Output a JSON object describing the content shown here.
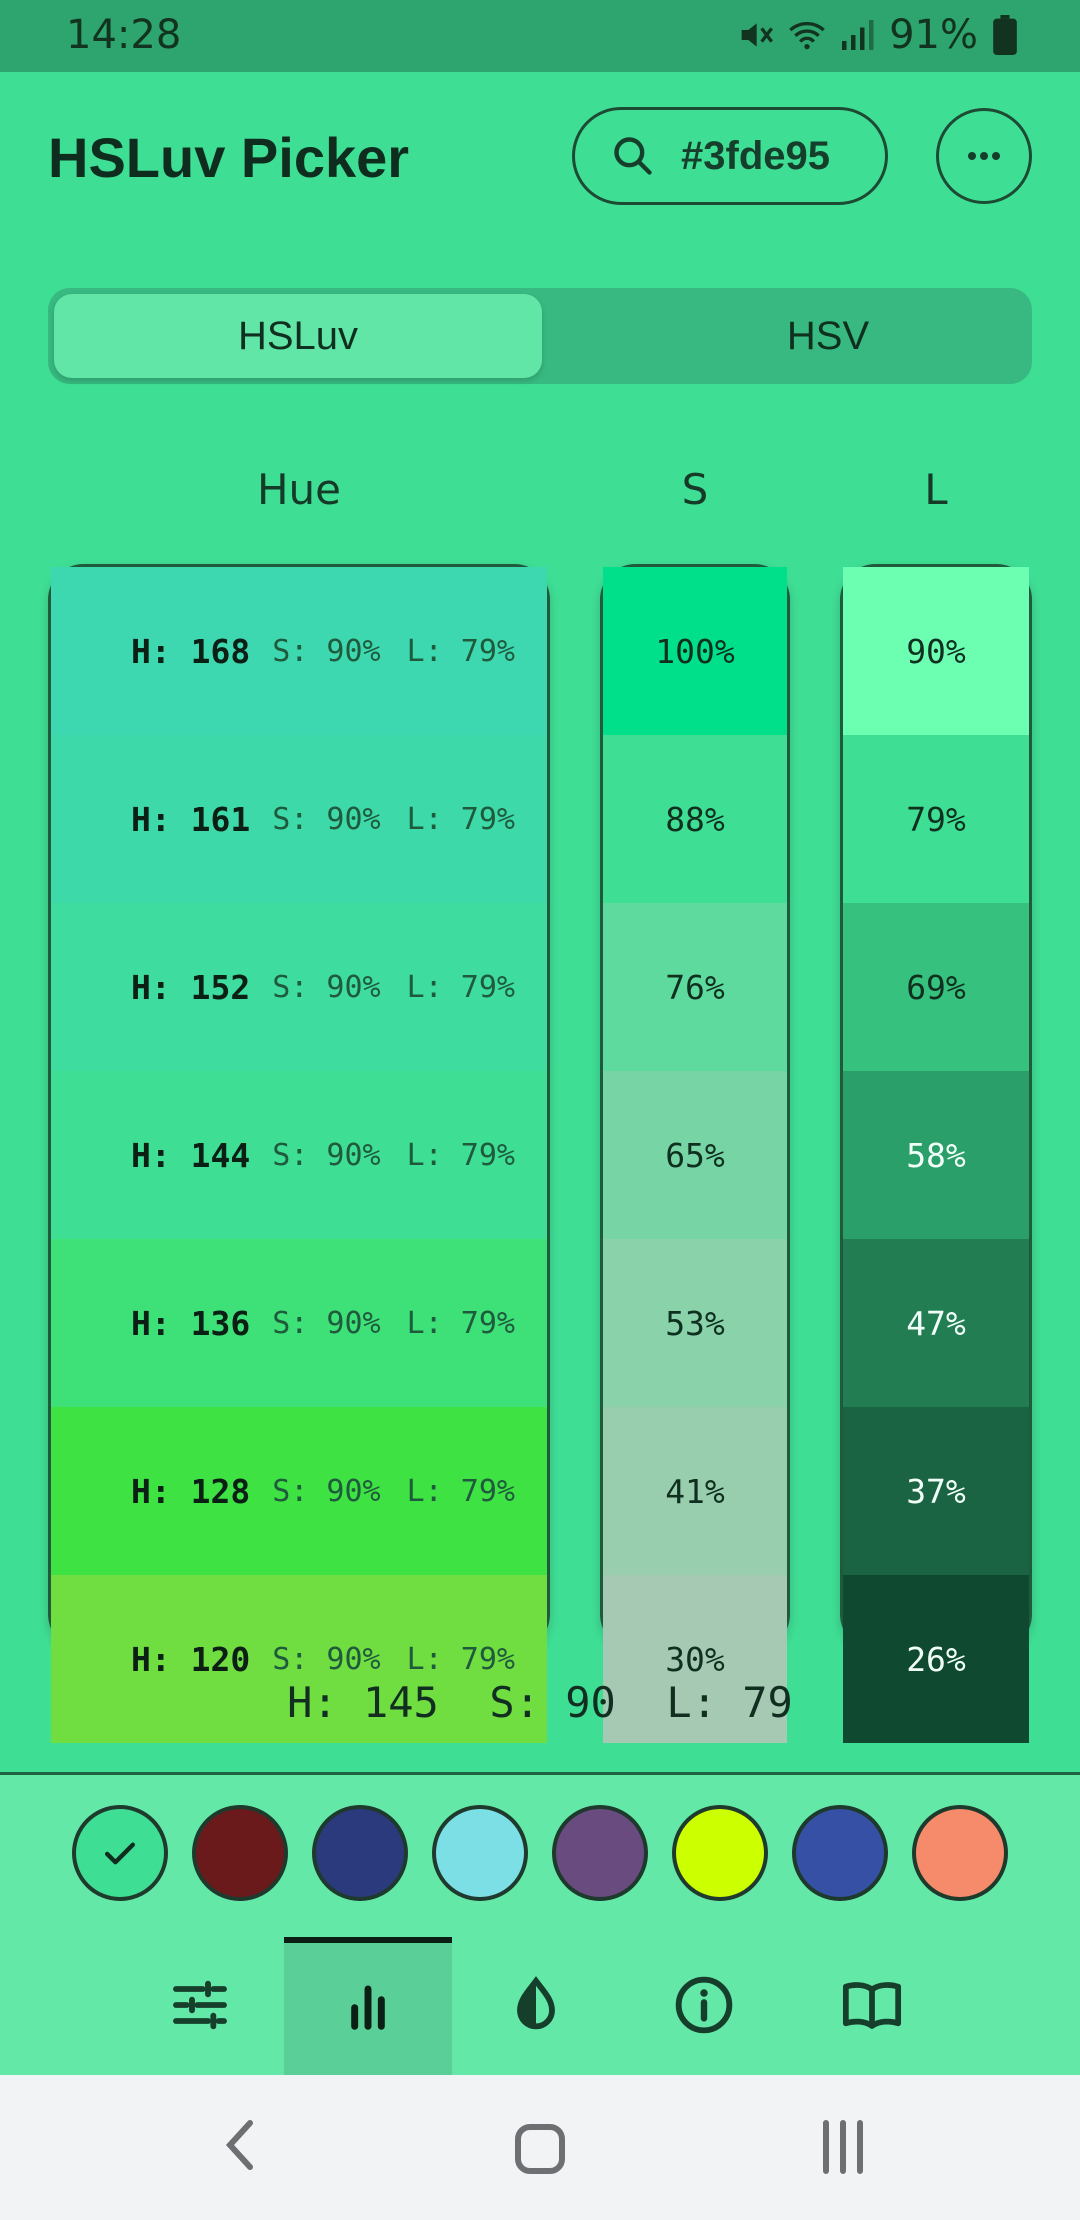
{
  "status_bar": {
    "time": "14:28",
    "battery": "91%"
  },
  "header": {
    "title": "HSLuv Picker",
    "hex_value": "#3fde95"
  },
  "mode_tabs": [
    {
      "label": "HSLuv",
      "active": true
    },
    {
      "label": "HSV",
      "active": false
    }
  ],
  "columns": {
    "hue": "Hue",
    "saturation": "S",
    "lightness": "L"
  },
  "hue_rows": [
    {
      "h": "H: 168",
      "s": "S: 90%",
      "l": "L: 79%",
      "color": "#3ed8b0"
    },
    {
      "h": "H: 161",
      "s": "S: 90%",
      "l": "L: 79%",
      "color": "#3dd9a8"
    },
    {
      "h": "H: 152",
      "s": "S: 90%",
      "l": "L: 79%",
      "color": "#3edc9f"
    },
    {
      "h": "H: 144",
      "s": "S: 90%",
      "l": "L: 79%",
      "color": "#3ede95"
    },
    {
      "h": "H: 136",
      "s": "S: 90%",
      "l": "L: 79%",
      "color": "#3ee078"
    },
    {
      "h": "H: 128",
      "s": "S: 90%",
      "l": "L: 79%",
      "color": "#3ee243"
    },
    {
      "h": "H: 120",
      "s": "S: 90%",
      "l": "L: 79%",
      "color": "#70de40"
    }
  ],
  "saturation_rows": [
    {
      "label": "100%",
      "color": "#00e08a"
    },
    {
      "label": "88%",
      "color": "#3fde95"
    },
    {
      "label": "76%",
      "color": "#5fda9e"
    },
    {
      "label": "65%",
      "color": "#77d5a5"
    },
    {
      "label": "53%",
      "color": "#89d2aa"
    },
    {
      "label": "41%",
      "color": "#98cdae"
    },
    {
      "label": "30%",
      "color": "#a5c9b3"
    }
  ],
  "lightness_rows": [
    {
      "label": "90%",
      "color": "#6cffb2",
      "text": "#10301f"
    },
    {
      "label": "79%",
      "color": "#3fde95",
      "text": "#10301f"
    },
    {
      "label": "69%",
      "color": "#37c17f",
      "text": "#10301f"
    },
    {
      "label": "58%",
      "color": "#2b9f69",
      "text": "#f2fff8"
    },
    {
      "label": "47%",
      "color": "#227e52",
      "text": "#f2fff8"
    },
    {
      "label": "37%",
      "color": "#1a6444",
      "text": "#f2fff8"
    },
    {
      "label": "26%",
      "color": "#0f4a30",
      "text": "#f2fff8"
    }
  ],
  "readout": "H: 145  S: 90  L: 79",
  "swatches": [
    {
      "color": "#3fde95",
      "selected": true
    },
    {
      "color": "#6b1a1c"
    },
    {
      "color": "#2a3a7c"
    },
    {
      "color": "#7ddfe6"
    },
    {
      "color": "#6a4b80"
    },
    {
      "color": "#ccff00"
    },
    {
      "color": "#3650a6"
    },
    {
      "color": "#f58b6a"
    }
  ],
  "bottom_nav": [
    {
      "icon": "sliders-icon",
      "active": false
    },
    {
      "icon": "bar-chart-icon",
      "active": true
    },
    {
      "icon": "contrast-drop-icon",
      "active": false
    },
    {
      "icon": "info-icon",
      "active": false
    },
    {
      "icon": "book-icon",
      "active": false
    }
  ]
}
